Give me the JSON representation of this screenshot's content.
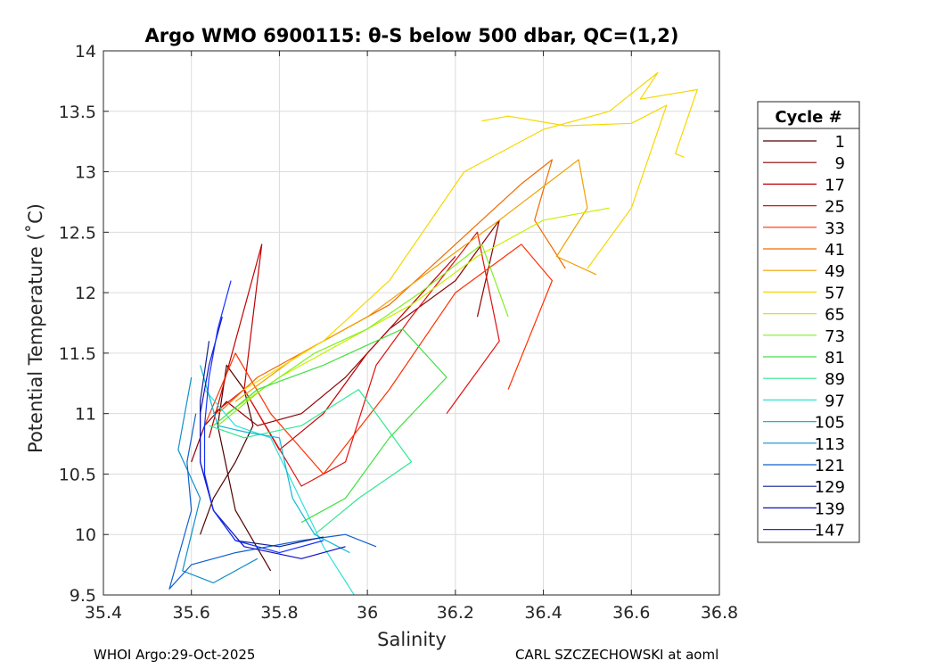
{
  "chart_data": {
    "type": "line",
    "title": "Argo WMO 6900115: θ-S below 500 dbar,  QC=(1,2)",
    "xlabel": "Salinity",
    "ylabel": "Potential Temperature (˚C)",
    "xlim": [
      35.4,
      36.8
    ],
    "ylim": [
      9.5,
      14
    ],
    "xticks": [
      "35.4",
      "35.6",
      "35.8",
      "36",
      "36.2",
      "36.4",
      "36.6",
      "36.8"
    ],
    "yticks": [
      "9.5",
      "10",
      "10.5",
      "11",
      "11.5",
      "12",
      "12.5",
      "13",
      "13.5",
      "14"
    ],
    "grid": true,
    "legend": {
      "title": "Cycle #",
      "placement": "outside-right",
      "entries": [
        {
          "label": "1",
          "color": "#500000"
        },
        {
          "label": "9",
          "color": "#8c0000"
        },
        {
          "label": "17",
          "color": "#c00000"
        },
        {
          "label": "25",
          "color": "#e01010"
        },
        {
          "label": "33",
          "color": "#ff3000"
        },
        {
          "label": "41",
          "color": "#f06a00"
        },
        {
          "label": "49",
          "color": "#f0a000"
        },
        {
          "label": "57",
          "color": "#f5d800"
        },
        {
          "label": "65",
          "color": "#c8f000"
        },
        {
          "label": "73",
          "color": "#80f020"
        },
        {
          "label": "81",
          "color": "#40e040"
        },
        {
          "label": "89",
          "color": "#30e890"
        },
        {
          "label": "97",
          "color": "#30e0d8"
        },
        {
          "label": "105",
          "color": "#10b8d8"
        },
        {
          "label": "113",
          "color": "#1090c8"
        },
        {
          "label": "121",
          "color": "#1060d0"
        },
        {
          "label": "129",
          "color": "#102090"
        },
        {
          "label": "139",
          "color": "#1010c0"
        },
        {
          "label": "147",
          "color": "#1030ff"
        }
      ]
    },
    "series": [
      {
        "color": "#500000",
        "x": [
          35.62,
          35.65,
          35.7,
          35.74,
          35.72,
          35.68,
          35.66,
          35.7,
          35.78
        ],
        "y": [
          10.0,
          10.3,
          10.6,
          10.9,
          11.2,
          11.4,
          10.9,
          10.2,
          9.7
        ]
      },
      {
        "color": "#8c0000",
        "x": [
          35.6,
          35.63,
          35.68,
          35.75,
          35.85,
          35.95,
          36.05,
          36.2,
          36.3,
          36.25
        ],
        "y": [
          10.6,
          10.9,
          11.1,
          10.9,
          11.0,
          11.3,
          11.7,
          12.1,
          12.6,
          11.8
        ]
      },
      {
        "color": "#c00000",
        "x": [
          35.64,
          35.7,
          35.76,
          35.72,
          35.8,
          35.9,
          36.0,
          36.1,
          36.2
        ],
        "y": [
          10.8,
          11.6,
          12.4,
          11.2,
          10.7,
          11.0,
          11.5,
          11.9,
          12.3
        ]
      },
      {
        "color": "#e01010",
        "x": [
          35.65,
          35.72,
          35.85,
          35.95,
          36.02,
          36.1,
          36.25,
          36.3,
          36.18
        ],
        "y": [
          11.0,
          11.2,
          10.4,
          10.6,
          11.4,
          11.8,
          12.5,
          11.6,
          11.0
        ]
      },
      {
        "color": "#ff3000",
        "x": [
          35.63,
          35.7,
          35.78,
          35.9,
          36.05,
          36.2,
          36.35,
          36.42,
          36.32
        ],
        "y": [
          10.9,
          11.5,
          11.0,
          10.5,
          11.2,
          12.0,
          12.4,
          12.1,
          11.2
        ]
      },
      {
        "color": "#f06a00",
        "x": [
          35.66,
          35.75,
          35.9,
          36.05,
          36.2,
          36.35,
          36.42,
          36.38,
          36.45
        ],
        "y": [
          11.0,
          11.3,
          11.6,
          11.9,
          12.4,
          12.9,
          13.1,
          12.6,
          12.2
        ]
      },
      {
        "color": "#f0a000",
        "x": [
          35.7,
          35.85,
          36.0,
          36.15,
          36.3,
          36.48,
          36.5,
          36.43,
          36.52
        ],
        "y": [
          11.1,
          11.5,
          11.8,
          12.2,
          12.6,
          13.1,
          12.7,
          12.3,
          12.15
        ]
      },
      {
        "color": "#f5d800",
        "x": [
          35.72,
          35.9,
          36.05,
          36.22,
          36.4,
          36.55,
          36.66,
          36.62,
          36.75,
          36.7,
          36.72
        ],
        "y": [
          11.2,
          11.6,
          12.1,
          13.0,
          13.35,
          13.5,
          13.82,
          13.6,
          13.68,
          13.15,
          13.12
        ]
      },
      {
        "color": "#f5d800",
        "x": [
          36.26,
          36.32,
          36.45,
          36.6,
          36.68,
          36.6,
          36.5
        ],
        "y": [
          13.42,
          13.46,
          13.38,
          13.4,
          13.55,
          12.7,
          12.2
        ]
      },
      {
        "color": "#c8f000",
        "x": [
          35.68,
          35.8,
          35.95,
          36.1,
          36.25,
          36.4,
          36.55
        ],
        "y": [
          11.0,
          11.3,
          11.6,
          11.9,
          12.3,
          12.6,
          12.7
        ]
      },
      {
        "color": "#80f020",
        "x": [
          35.66,
          35.76,
          35.88,
          36.0,
          36.12,
          36.26,
          36.32
        ],
        "y": [
          10.9,
          11.2,
          11.5,
          11.7,
          12.0,
          12.4,
          11.8
        ]
      },
      {
        "color": "#40e040",
        "x": [
          35.65,
          35.75,
          35.9,
          36.08,
          36.18,
          36.05,
          35.95,
          35.85
        ],
        "y": [
          10.9,
          11.2,
          11.4,
          11.7,
          11.3,
          10.8,
          10.3,
          10.1
        ]
      },
      {
        "color": "#30e890",
        "x": [
          35.64,
          35.72,
          35.85,
          35.98,
          36.1,
          35.98,
          35.88
        ],
        "y": [
          10.9,
          10.8,
          10.9,
          11.2,
          10.6,
          10.3,
          10.0
        ]
      },
      {
        "color": "#30e0d8",
        "x": [
          35.63,
          35.7,
          35.78,
          35.82,
          35.86,
          35.9,
          35.97
        ],
        "y": [
          11.2,
          10.9,
          10.8,
          10.5,
          10.2,
          9.9,
          9.5
        ]
      },
      {
        "color": "#10b8d8",
        "x": [
          35.62,
          35.66,
          35.72,
          35.8,
          35.83,
          35.88,
          35.96
        ],
        "y": [
          11.4,
          10.9,
          10.85,
          10.8,
          10.3,
          10.0,
          9.85
        ]
      },
      {
        "color": "#1090c8",
        "x": [
          35.6,
          35.57,
          35.62,
          35.6,
          35.58,
          35.65,
          35.75
        ],
        "y": [
          11.3,
          10.7,
          10.3,
          10.0,
          9.7,
          9.6,
          9.8
        ]
      },
      {
        "color": "#1060d0",
        "x": [
          35.61,
          35.59,
          35.6,
          35.55,
          35.6,
          35.7,
          35.85,
          35.95,
          36.02
        ],
        "y": [
          11.0,
          10.6,
          10.2,
          9.55,
          9.75,
          9.85,
          9.95,
          10.0,
          9.9
        ]
      },
      {
        "color": "#102090",
        "x": [
          35.64,
          35.62,
          35.62,
          35.65,
          35.7,
          35.8,
          35.9
        ],
        "y": [
          11.6,
          11.1,
          10.6,
          10.2,
          9.95,
          9.9,
          9.98
        ]
      },
      {
        "color": "#1010c0",
        "x": [
          35.67,
          35.64,
          35.62,
          35.62,
          35.65,
          35.72,
          35.85,
          35.95
        ],
        "y": [
          11.8,
          11.4,
          11.0,
          10.6,
          10.2,
          9.9,
          9.8,
          9.9
        ]
      },
      {
        "color": "#1030ff",
        "x": [
          35.69,
          35.66,
          35.64,
          35.63,
          35.63,
          35.65,
          35.7,
          35.8,
          35.9
        ],
        "y": [
          12.1,
          11.7,
          11.3,
          10.9,
          10.5,
          10.2,
          9.95,
          9.85,
          9.95
        ]
      }
    ]
  },
  "footer": {
    "left": "WHOI Argo:29-Oct-2025",
    "right": "CARL SZCZECHOWSKI at aoml"
  }
}
